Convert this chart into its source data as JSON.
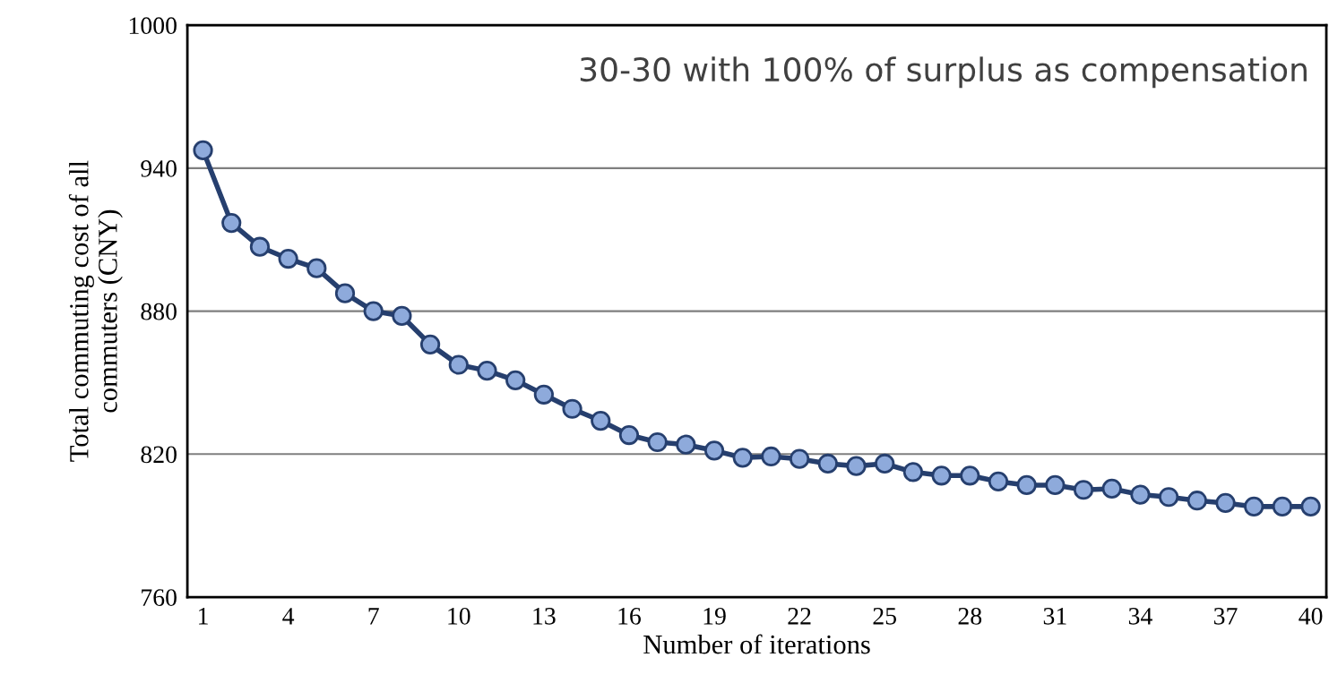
{
  "chart_data": {
    "type": "line",
    "xlabel": "Number of iterations",
    "ylabel": "Total commuting cost of all\ncommuters (CNY)",
    "annotations": [
      "30-30 with 100% of surplus as compensation"
    ],
    "x": [
      1,
      2,
      3,
      4,
      5,
      6,
      7,
      8,
      9,
      10,
      11,
      12,
      13,
      14,
      15,
      16,
      17,
      18,
      19,
      20,
      21,
      22,
      23,
      24,
      25,
      26,
      27,
      28,
      29,
      30,
      31,
      32,
      33,
      34,
      35,
      36,
      37,
      38,
      39,
      40
    ],
    "series": [
      {
        "color": "#263f6e",
        "values": [
          947.5,
          917,
          907,
          902,
          898,
          887.5,
          880,
          878,
          866,
          857.5,
          855,
          851,
          845,
          839,
          834,
          828,
          825,
          824,
          821.5,
          818.5,
          819,
          818,
          816,
          815,
          816,
          812.5,
          811,
          811,
          808.5,
          807,
          807,
          805,
          805.5,
          803,
          802,
          800.5,
          799.5,
          798,
          798,
          798
        ]
      }
    ],
    "xlim": [
      0.45,
      40.55
    ],
    "xticks": [
      1,
      4,
      7,
      10,
      13,
      16,
      19,
      22,
      25,
      28,
      31,
      34,
      37,
      40
    ],
    "ylim": [
      760,
      1000
    ],
    "yticks": [
      760,
      820,
      880,
      940,
      1000
    ],
    "grid": "y",
    "legend": false,
    "marker": "circle",
    "line_style": "solid"
  }
}
